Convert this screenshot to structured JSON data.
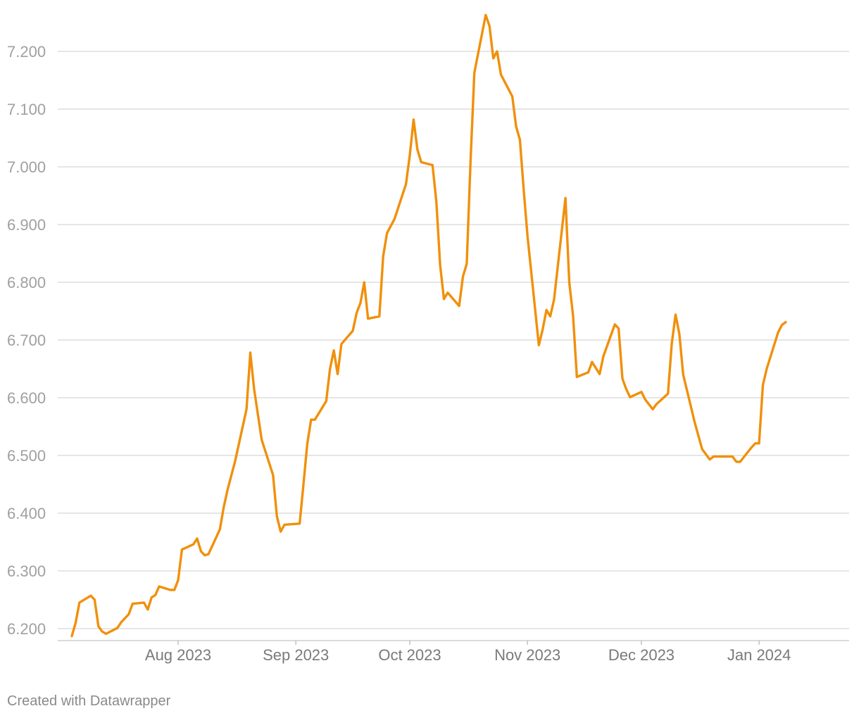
{
  "chart_data": {
    "type": "line",
    "title": "",
    "xlabel": "",
    "ylabel": "",
    "yticks": [
      {
        "value": 6.2,
        "label": "6.200"
      },
      {
        "value": 6.3,
        "label": "6.300"
      },
      {
        "value": 6.4,
        "label": "6.400"
      },
      {
        "value": 6.5,
        "label": "6.500"
      },
      {
        "value": 6.6,
        "label": "6.600"
      },
      {
        "value": 6.7,
        "label": "6.700"
      },
      {
        "value": 6.8,
        "label": "6.800"
      },
      {
        "value": 6.9,
        "label": "6.900"
      },
      {
        "value": 7.0,
        "label": "7.000"
      },
      {
        "value": 7.1,
        "label": "7.100"
      },
      {
        "value": 7.2,
        "label": "7.200"
      }
    ],
    "xticks": [
      {
        "date": "2023-08-01",
        "label": "Aug 2023"
      },
      {
        "date": "2023-09-01",
        "label": "Sep 2023"
      },
      {
        "date": "2023-10-01",
        "label": "Oct 2023"
      },
      {
        "date": "2023-11-01",
        "label": "Nov 2023"
      },
      {
        "date": "2023-12-01",
        "label": "Dec 2023"
      },
      {
        "date": "2024-01-01",
        "label": "Jan 2024"
      }
    ],
    "xlim": [
      "2023-07-04",
      "2024-01-21"
    ],
    "ylim": [
      6.18,
      7.25
    ],
    "grid": true,
    "legend": "none",
    "color": "#f0900c",
    "series": [
      {
        "points": [
          [
            "2023-07-04",
            6.187
          ],
          [
            "2023-07-05",
            6.21
          ],
          [
            "2023-07-06",
            6.245
          ],
          [
            "2023-07-09",
            6.257
          ],
          [
            "2023-07-10",
            6.25
          ],
          [
            "2023-07-11",
            6.204
          ],
          [
            "2023-07-12",
            6.195
          ],
          [
            "2023-07-13",
            6.191
          ],
          [
            "2023-07-16",
            6.201
          ],
          [
            "2023-07-17",
            6.211
          ],
          [
            "2023-07-19",
            6.225
          ],
          [
            "2023-07-20",
            6.243
          ],
          [
            "2023-07-23",
            6.245
          ],
          [
            "2023-07-24",
            6.233
          ],
          [
            "2023-07-25",
            6.254
          ],
          [
            "2023-07-26",
            6.258
          ],
          [
            "2023-07-27",
            6.273
          ],
          [
            "2023-07-30",
            6.267
          ],
          [
            "2023-07-31",
            6.267
          ],
          [
            "2023-08-01",
            6.284
          ],
          [
            "2023-08-02",
            6.337
          ],
          [
            "2023-08-05",
            6.346
          ],
          [
            "2023-08-06",
            6.356
          ],
          [
            "2023-08-07",
            6.334
          ],
          [
            "2023-08-08",
            6.327
          ],
          [
            "2023-08-09",
            6.329
          ],
          [
            "2023-08-12",
            6.372
          ],
          [
            "2023-08-13",
            6.41
          ],
          [
            "2023-08-14",
            6.44
          ],
          [
            "2023-08-16",
            6.49
          ],
          [
            "2023-08-19",
            6.58
          ],
          [
            "2023-08-20",
            6.678
          ],
          [
            "2023-08-21",
            6.615
          ],
          [
            "2023-08-23",
            6.527
          ],
          [
            "2023-08-26",
            6.466
          ],
          [
            "2023-08-27",
            6.395
          ],
          [
            "2023-08-28",
            6.368
          ],
          [
            "2023-08-29",
            6.38
          ],
          [
            "2023-09-02",
            6.382
          ],
          [
            "2023-09-03",
            6.45
          ],
          [
            "2023-09-04",
            6.52
          ],
          [
            "2023-09-05",
            6.562
          ],
          [
            "2023-09-06",
            6.562
          ],
          [
            "2023-09-09",
            6.594
          ],
          [
            "2023-09-10",
            6.65
          ],
          [
            "2023-09-11",
            6.682
          ],
          [
            "2023-09-12",
            6.641
          ],
          [
            "2023-09-13",
            6.693
          ],
          [
            "2023-09-16",
            6.716
          ],
          [
            "2023-09-17",
            6.747
          ],
          [
            "2023-09-18",
            6.764
          ],
          [
            "2023-09-19",
            6.8
          ],
          [
            "2023-09-20",
            6.737
          ],
          [
            "2023-09-23",
            6.741
          ],
          [
            "2023-09-24",
            6.845
          ],
          [
            "2023-09-25",
            6.885
          ],
          [
            "2023-09-27",
            6.91
          ],
          [
            "2023-09-30",
            6.97
          ],
          [
            "2023-10-01",
            7.02
          ],
          [
            "2023-10-02",
            7.082
          ],
          [
            "2023-10-03",
            7.03
          ],
          [
            "2023-10-04",
            7.008
          ],
          [
            "2023-10-07",
            7.003
          ],
          [
            "2023-10-08",
            6.94
          ],
          [
            "2023-10-09",
            6.83
          ],
          [
            "2023-10-10",
            6.771
          ],
          [
            "2023-10-11",
            6.782
          ],
          [
            "2023-10-14",
            6.759
          ],
          [
            "2023-10-15",
            6.81
          ],
          [
            "2023-10-16",
            6.832
          ],
          [
            "2023-10-17",
            7.01
          ],
          [
            "2023-10-18",
            7.163
          ],
          [
            "2023-10-21",
            7.263
          ],
          [
            "2023-10-22",
            7.244
          ],
          [
            "2023-10-23",
            7.188
          ],
          [
            "2023-10-24",
            7.2
          ],
          [
            "2023-10-25",
            7.16
          ],
          [
            "2023-10-28",
            7.122
          ],
          [
            "2023-10-29",
            7.07
          ],
          [
            "2023-10-30",
            7.047
          ],
          [
            "2023-10-31",
            6.96
          ],
          [
            "2023-11-01",
            6.88
          ],
          [
            "2023-11-04",
            6.691
          ],
          [
            "2023-11-05",
            6.718
          ],
          [
            "2023-11-06",
            6.752
          ],
          [
            "2023-11-07",
            6.741
          ],
          [
            "2023-11-08",
            6.77
          ],
          [
            "2023-11-11",
            6.946
          ],
          [
            "2023-11-12",
            6.8
          ],
          [
            "2023-11-13",
            6.742
          ],
          [
            "2023-11-14",
            6.636
          ],
          [
            "2023-11-17",
            6.644
          ],
          [
            "2023-11-18",
            6.662
          ],
          [
            "2023-11-20",
            6.641
          ],
          [
            "2023-11-21",
            6.672
          ],
          [
            "2023-11-24",
            6.727
          ],
          [
            "2023-11-25",
            6.72
          ],
          [
            "2023-11-26",
            6.633
          ],
          [
            "2023-11-27",
            6.615
          ],
          [
            "2023-11-28",
            6.601
          ],
          [
            "2023-12-01",
            6.61
          ],
          [
            "2023-12-02",
            6.597
          ],
          [
            "2023-12-04",
            6.58
          ],
          [
            "2023-12-05",
            6.589
          ],
          [
            "2023-12-08",
            6.607
          ],
          [
            "2023-12-09",
            6.694
          ],
          [
            "2023-12-10",
            6.744
          ],
          [
            "2023-12-11",
            6.71
          ],
          [
            "2023-12-12",
            6.64
          ],
          [
            "2023-12-15",
            6.558
          ],
          [
            "2023-12-17",
            6.511
          ],
          [
            "2023-12-19",
            6.493
          ],
          [
            "2023-12-20",
            6.498
          ],
          [
            "2023-12-23",
            6.498
          ],
          [
            "2023-12-25",
            6.498
          ],
          [
            "2023-12-26",
            6.489
          ],
          [
            "2023-12-27",
            6.489
          ],
          [
            "2023-12-30",
            6.514
          ],
          [
            "2023-12-31",
            6.521
          ],
          [
            "2024-01-01",
            6.521
          ],
          [
            "2024-01-02",
            6.622
          ],
          [
            "2024-01-03",
            6.65
          ],
          [
            "2024-01-06",
            6.713
          ],
          [
            "2024-01-07",
            6.726
          ],
          [
            "2024-01-08",
            6.731
          ]
        ]
      }
    ]
  },
  "footer": {
    "credit": "Created with Datawrapper"
  }
}
